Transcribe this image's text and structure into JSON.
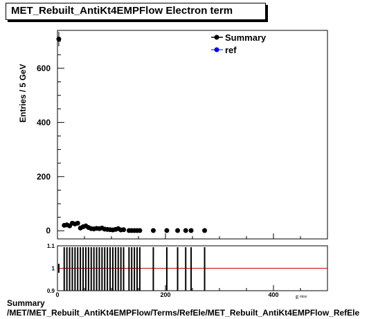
{
  "title": "MET_Rebuilt_AntiKt4EMPFlow Electron term",
  "footer": {
    "line1": "Summary",
    "line2": "/MET/MET_Rebuilt_AntiKt4EMPFlow/Terms/RefEle/MET_Rebuilt_AntiKt4EMPFlow_RefEle"
  },
  "colors": {
    "summary": "#000000",
    "ref": "#0000ff",
    "ratio_line": "#cc0000"
  },
  "chart_data": [
    {
      "type": "scatter",
      "ylabel": "Entries / 5 GeV",
      "xlim": [
        0,
        500
      ],
      "ylim": [
        -30,
        740
      ],
      "y_ticks": [
        0,
        200,
        400,
        600
      ],
      "legend": {
        "placement": "top-right",
        "entries": [
          "Summary",
          "ref"
        ]
      },
      "series": [
        {
          "name": "Summary",
          "x": [
            2.5,
            12.5,
            17.5,
            22.5,
            27.5,
            32.5,
            37.5,
            42.5,
            47.5,
            52.5,
            57.5,
            62.5,
            67.5,
            72.5,
            77.5,
            82.5,
            87.5,
            92.5,
            97.5,
            102.5,
            107.5,
            112.5,
            117.5,
            122.5,
            132.5,
            137.5,
            142.5,
            147.5,
            152.5,
            177.5,
            202.5,
            222.5,
            237.5,
            247.5,
            272.5
          ],
          "y": [
            708,
            20,
            22,
            18,
            28,
            25,
            28,
            10,
            15,
            18,
            12,
            8,
            7,
            9,
            8,
            10,
            6,
            5,
            4,
            3,
            5,
            8,
            3,
            4,
            1,
            1,
            1,
            1,
            1,
            1,
            1,
            1,
            1,
            1,
            1
          ]
        },
        {
          "name": "ref",
          "x": [],
          "y": []
        }
      ]
    },
    {
      "type": "scatter",
      "xlim": [
        0,
        500
      ],
      "ylim": [
        0.9,
        1.1
      ],
      "x_ticks": [
        0,
        200,
        400
      ],
      "y_tick_labels": [
        "0.9",
        "1",
        "1.1"
      ],
      "x_axis_label_partial": "E^{miss} (GeV)",
      "reference_line": 1.0,
      "series": [
        {
          "name": "",
          "x": [
            2.5,
            12.5,
            17.5,
            22.5,
            27.5,
            32.5,
            37.5,
            42.5,
            47.5,
            52.5,
            57.5,
            62.5,
            67.5,
            72.5,
            77.5,
            82.5,
            87.5,
            92.5,
            97.5,
            102.5,
            107.5,
            112.5,
            117.5,
            122.5,
            132.5,
            137.5,
            142.5,
            147.5,
            152.5,
            177.5,
            202.5,
            222.5,
            237.5,
            247.5,
            272.5
          ],
          "y": [
            1,
            1,
            1,
            1,
            1,
            1,
            1,
            1,
            1,
            1,
            1,
            1,
            1,
            1,
            1,
            1,
            1,
            1,
            1,
            1,
            1,
            1,
            1,
            1,
            1,
            1,
            1,
            1,
            1,
            1,
            1,
            1,
            1,
            1,
            1
          ]
        }
      ]
    }
  ]
}
